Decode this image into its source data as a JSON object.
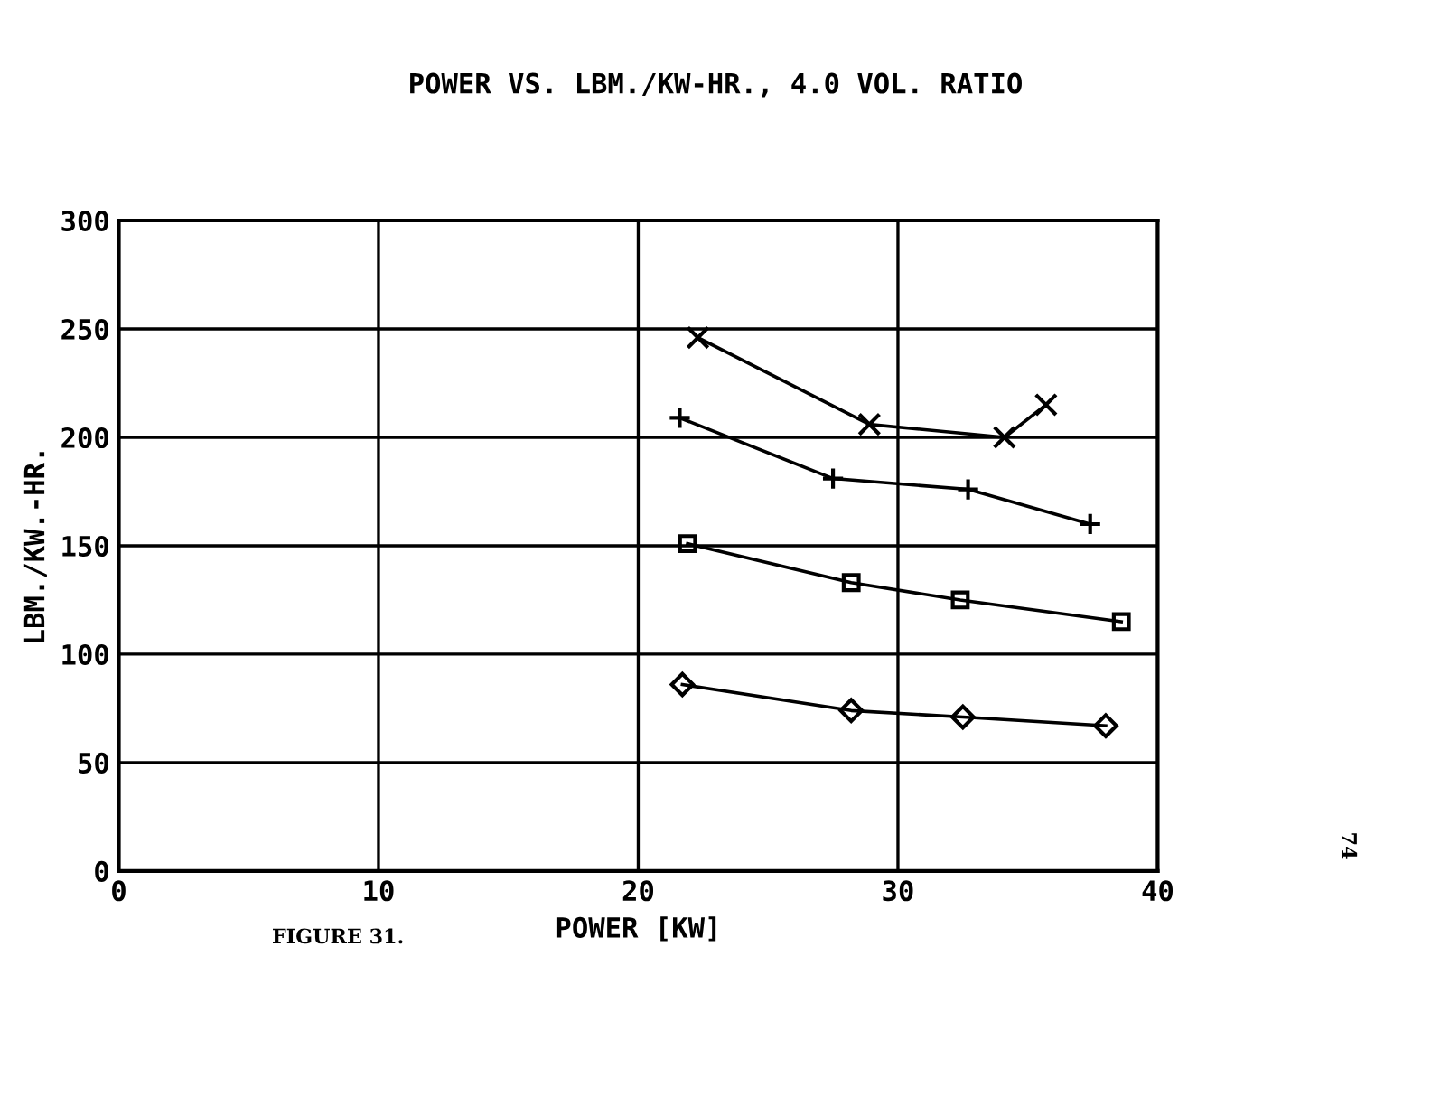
{
  "chart_data": {
    "type": "line",
    "title": "POWER VS. LBM./KW-HR., 4.0 VOL. RATIO",
    "xlabel": "POWER [KW]",
    "ylabel": "LBM./KW.-HR.",
    "xlim": [
      0,
      40
    ],
    "xticks": [
      0,
      10,
      20,
      30,
      40
    ],
    "ylim": [
      0,
      300
    ],
    "yticks": [
      0,
      50,
      100,
      150,
      200,
      250,
      300
    ],
    "grid": true,
    "line_style": "solid",
    "series": [
      {
        "color": "#000000",
        "marker": "cross",
        "x": [
          22.3,
          28.9,
          34.1,
          35.7
        ],
        "values": [
          246,
          206,
          200,
          215
        ]
      },
      {
        "color": "#000000",
        "marker": "plus",
        "x": [
          21.6,
          27.5,
          32.7,
          37.4
        ],
        "values": [
          209,
          181,
          176,
          160
        ]
      },
      {
        "color": "#000000",
        "marker": "square",
        "x": [
          21.9,
          28.2,
          32.4,
          38.6
        ],
        "values": [
          151,
          133,
          125,
          115
        ]
      },
      {
        "color": "#000000",
        "marker": "diamond",
        "x": [
          21.7,
          28.2,
          32.5,
          38.0
        ],
        "values": [
          86,
          74,
          71,
          67
        ]
      }
    ],
    "annotations": [
      "FIGURE 31.",
      "74"
    ]
  }
}
